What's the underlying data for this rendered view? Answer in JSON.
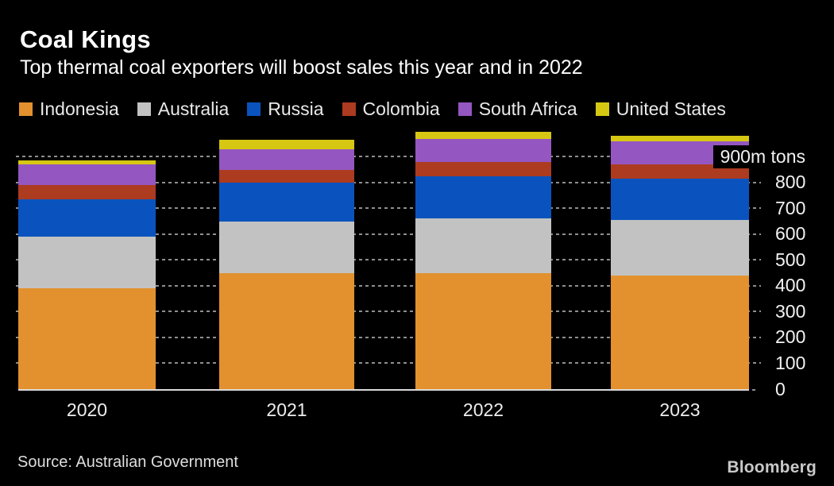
{
  "header": {
    "title": "Coal Kings",
    "subtitle": "Top thermal coal exporters will boost sales this year and in 2022"
  },
  "legend": [
    {
      "label": "Indonesia",
      "color": "#E2912E"
    },
    {
      "label": "Australia",
      "color": "#C2C2C2"
    },
    {
      "label": "Russia",
      "color": "#0A53BE"
    },
    {
      "label": "Colombia",
      "color": "#AC3B20"
    },
    {
      "label": "South Africa",
      "color": "#9456C0"
    },
    {
      "label": "United States",
      "color": "#D6C713"
    }
  ],
  "chart_data": {
    "type": "bar",
    "stacked": true,
    "title": "Coal Kings",
    "subtitle": "Top thermal coal exporters will boost sales this year and in 2022",
    "categories": [
      "2020",
      "2021",
      "2022",
      "2023"
    ],
    "series": [
      {
        "name": "Indonesia",
        "color": "#E2912E",
        "values": [
          390,
          450,
          450,
          440
        ]
      },
      {
        "name": "Australia",
        "color": "#C2C2C2",
        "values": [
          200,
          200,
          210,
          215
        ]
      },
      {
        "name": "Russia",
        "color": "#0A53BE",
        "values": [
          145,
          150,
          165,
          160
        ]
      },
      {
        "name": "Colombia",
        "color": "#AC3B20",
        "values": [
          55,
          50,
          55,
          55
        ]
      },
      {
        "name": "South Africa",
        "color": "#9456C0",
        "values": [
          80,
          80,
          90,
          90
        ]
      },
      {
        "name": "United States",
        "color": "#D6C713",
        "values": [
          15,
          35,
          25,
          20
        ]
      }
    ],
    "y_axis": {
      "min": 0,
      "max": 900,
      "step": 100,
      "unit": "m tons",
      "top_label": "900m tons",
      "ticks": [
        "0",
        "100",
        "200",
        "300",
        "400",
        "500",
        "600",
        "700",
        "800"
      ]
    },
    "grid": "dashed horizontal, behind bars",
    "legend_position": "top"
  },
  "footer": {
    "source": "Source: Australian Government",
    "brand": "Bloomberg"
  }
}
